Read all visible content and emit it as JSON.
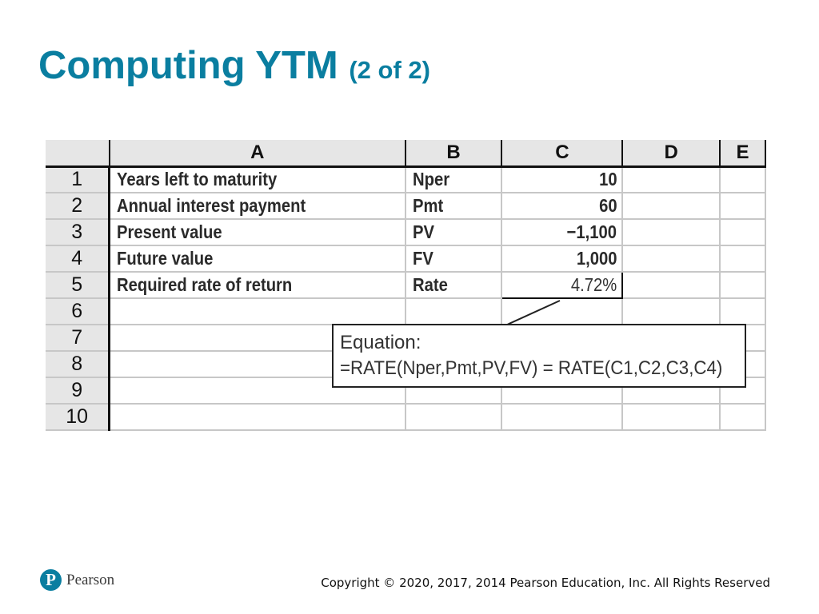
{
  "slide": {
    "title": "Computing YTM",
    "subtitle": "(2 of 2)"
  },
  "spreadsheet": {
    "columns": [
      "A",
      "B",
      "C",
      "D",
      "E"
    ],
    "rows": [
      {
        "num": "1",
        "a": "Years left to maturity",
        "b": "Nper",
        "c": "10"
      },
      {
        "num": "2",
        "a": "Annual interest payment",
        "b": "Pmt",
        "c": "60"
      },
      {
        "num": "3",
        "a": "Present value",
        "b": "PV",
        "c": "−1,100"
      },
      {
        "num": "4",
        "a": "Future value",
        "b": "FV",
        "c": "1,000"
      },
      {
        "num": "5",
        "a": "Required rate of return",
        "b": "Rate",
        "c": "4.72%"
      },
      {
        "num": "6",
        "a": "",
        "b": "",
        "c": ""
      },
      {
        "num": "7",
        "a": "",
        "b": "",
        "c": ""
      },
      {
        "num": "8",
        "a": "",
        "b": "",
        "c": ""
      },
      {
        "num": "9",
        "a": "",
        "b": "",
        "c": ""
      },
      {
        "num": "10",
        "a": "",
        "b": "",
        "c": ""
      }
    ]
  },
  "callout": {
    "label": "Equation:",
    "formula": "=RATE(Nper,Pmt,PV,FV) = RATE(C1,C2,C3,C4)"
  },
  "footer": {
    "logo_letter": "P",
    "logo_text": "Pearson",
    "copyright": "Copyright © 2020, 2017, 2014 Pearson Education, Inc. All Rights Reserved"
  },
  "colors": {
    "title": "#0a7ea0",
    "logo": "#0a7ea0"
  }
}
